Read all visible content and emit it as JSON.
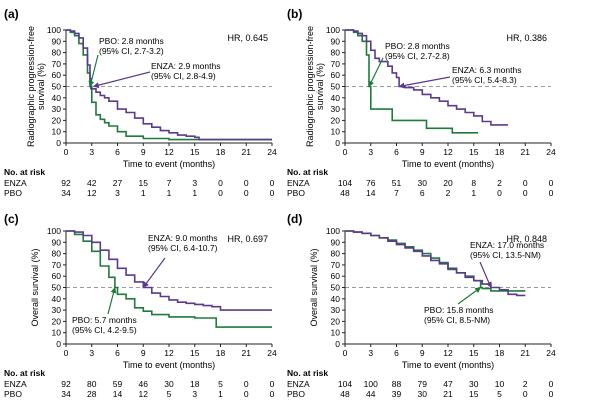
{
  "colors": {
    "enza": "#5b3a8e",
    "pbo": "#1e7b3c",
    "ref": "#9a9a9a",
    "axis": "#222222"
  },
  "risk_header": "No. at risk",
  "chart_data": [
    {
      "type": "line",
      "panel_label": "(a)",
      "hr_text": "HR, 0.645",
      "ylabel": "Radiographic progression-free survival (%)",
      "ylabel_lines": [
        "Radiographic progression-free",
        "survival (%)"
      ],
      "xlabel": "Time to event (months)",
      "xlim": [
        0,
        24
      ],
      "ylim": [
        0,
        100
      ],
      "x_ticks": [
        "0",
        "3",
        "6",
        "9",
        "12",
        "15",
        "18",
        "21",
        "24"
      ],
      "y_ticks": [
        "0",
        "10",
        "20",
        "30",
        "40",
        "50",
        "60",
        "70",
        "80",
        "90",
        "100"
      ],
      "reference_y": 50,
      "annotations": [
        {
          "series": "PBO",
          "lines": [
            "PBO: 2.8 months",
            "(95% CI, 2.7-3.2)"
          ]
        },
        {
          "series": "ENZA",
          "lines": [
            "ENZA: 2.9 months",
            "(95% CI, 2.8-4.9)"
          ]
        }
      ],
      "series": [
        {
          "name": "ENZA",
          "x": [
            0,
            0.5,
            1,
            1.5,
            2,
            2.5,
            2.8,
            2.9,
            3.5,
            4,
            4.5,
            5,
            6,
            7,
            8,
            9,
            10,
            11,
            12,
            13,
            14,
            15,
            15.5,
            16,
            24
          ],
          "y": [
            100,
            99,
            97,
            93,
            84,
            69,
            57,
            48,
            45,
            42,
            40,
            37,
            30,
            27,
            22,
            17,
            14,
            11,
            9,
            7,
            6,
            5,
            3,
            3,
            3
          ]
        },
        {
          "name": "PBO",
          "x": [
            0,
            0.5,
            1,
            1.5,
            2,
            2.5,
            2.8,
            3,
            3.5,
            4,
            4.5,
            5,
            6,
            7,
            9,
            12,
            15,
            16,
            24
          ],
          "y": [
            100,
            98,
            95,
            88,
            78,
            62,
            50,
            36,
            25,
            21,
            18,
            15,
            10,
            6,
            4,
            3,
            3,
            3,
            3
          ]
        }
      ],
      "risk_table": {
        "times": [
          "0",
          "3",
          "6",
          "9",
          "12",
          "15",
          "18",
          "21",
          "24"
        ],
        "rows": [
          {
            "label": "ENZA",
            "values": [
              "92",
              "42",
              "27",
              "15",
              "7",
              "3",
              "0",
              "0",
              "0"
            ]
          },
          {
            "label": "PBO",
            "values": [
              "34",
              "12",
              "3",
              "1",
              "1",
              "1",
              "0",
              "0",
              "0"
            ]
          }
        ]
      }
    },
    {
      "type": "line",
      "panel_label": "(b)",
      "hr_text": "HR, 0.386",
      "ylabel": "Radiographic progression-free survival (%)",
      "ylabel_lines": [
        "Radiographic progression-free",
        "survival (%)"
      ],
      "xlabel": "Time to event (months)",
      "xlim": [
        0,
        24
      ],
      "ylim": [
        0,
        100
      ],
      "x_ticks": [
        "0",
        "3",
        "6",
        "9",
        "12",
        "15",
        "18",
        "21",
        "24"
      ],
      "y_ticks": [
        "0",
        "10",
        "20",
        "30",
        "40",
        "50",
        "60",
        "70",
        "80",
        "90",
        "100"
      ],
      "reference_y": 50,
      "annotations": [
        {
          "series": "PBO",
          "lines": [
            "PBO: 2.8 months",
            "(95% CI, 2.7-2.8)"
          ]
        },
        {
          "series": "ENZA",
          "lines": [
            "ENZA: 6.3 months",
            "(95% CI, 5.4-8.3)"
          ]
        }
      ],
      "series": [
        {
          "name": "ENZA",
          "x": [
            0,
            1,
            1.5,
            2,
            2.5,
            3,
            3.5,
            4,
            5,
            5.5,
            6,
            6.3,
            7,
            8,
            9,
            10,
            11,
            12,
            13,
            14,
            15,
            16,
            17,
            19
          ],
          "y": [
            100,
            99,
            97,
            95,
            90,
            82,
            75,
            72,
            68,
            62,
            58,
            50,
            49,
            47,
            43,
            40,
            37,
            33,
            30,
            27,
            24,
            19,
            16,
            16
          ]
        },
        {
          "name": "PBO",
          "x": [
            0,
            1,
            1.5,
            2,
            2.5,
            2.8,
            3,
            5,
            5.5,
            9,
            9.5,
            12,
            12.5,
            15.5
          ],
          "y": [
            100,
            98,
            95,
            90,
            78,
            50,
            30,
            30,
            20,
            20,
            13,
            13,
            9,
            9
          ]
        }
      ],
      "risk_table": {
        "times": [
          "0",
          "3",
          "6",
          "9",
          "12",
          "15",
          "18",
          "21",
          "24"
        ],
        "rows": [
          {
            "label": "ENZA",
            "values": [
              "104",
              "76",
              "51",
              "30",
              "20",
              "8",
              "2",
              "0",
              "0"
            ]
          },
          {
            "label": "PBO",
            "values": [
              "48",
              "14",
              "7",
              "6",
              "2",
              "1",
              "0",
              "0",
              "0"
            ]
          }
        ]
      }
    },
    {
      "type": "line",
      "panel_label": "(c)",
      "hr_text": "HR, 0.697",
      "ylabel": "Overall survival (%)",
      "ylabel_lines": [
        "Overall survival (%)"
      ],
      "xlabel": "Time to event (months)",
      "xlim": [
        0,
        24
      ],
      "ylim": [
        0,
        100
      ],
      "x_ticks": [
        "0",
        "3",
        "6",
        "9",
        "12",
        "15",
        "18",
        "21",
        "24"
      ],
      "y_ticks": [
        "0",
        "10",
        "20",
        "30",
        "40",
        "50",
        "60",
        "70",
        "80",
        "90",
        "100"
      ],
      "reference_y": 50,
      "annotations": [
        {
          "series": "ENZA",
          "lines": [
            "ENZA: 9.0 months",
            "(95% CI, 6.4-10.7)"
          ]
        },
        {
          "series": "PBO",
          "lines": [
            "PBO: 5.7 months",
            "(95% CI, 4.2-9.5)"
          ]
        }
      ],
      "series": [
        {
          "name": "ENZA",
          "x": [
            0,
            1,
            2,
            3,
            4,
            5,
            6,
            7,
            8,
            9,
            10,
            11,
            12,
            13,
            14,
            15,
            16,
            17,
            18,
            20,
            24
          ],
          "y": [
            100,
            99,
            96,
            90,
            83,
            75,
            67,
            61,
            55,
            50,
            45,
            42,
            39,
            37,
            36,
            35,
            34,
            33,
            30,
            30,
            30
          ]
        },
        {
          "name": "PBO",
          "x": [
            0,
            1,
            2,
            3,
            4,
            5,
            5.7,
            6,
            7,
            8,
            9,
            10,
            12,
            15,
            17.5,
            24
          ],
          "y": [
            100,
            97,
            91,
            82,
            69,
            59,
            50,
            44,
            40,
            32,
            29,
            26,
            24,
            23,
            15,
            15
          ]
        }
      ],
      "risk_table": {
        "times": [
          "0",
          "3",
          "6",
          "9",
          "12",
          "15",
          "18",
          "21",
          "24"
        ],
        "rows": [
          {
            "label": "ENZA",
            "values": [
              "92",
              "80",
              "59",
              "46",
              "30",
              "18",
              "5",
              "0",
              "0"
            ]
          },
          {
            "label": "PBO",
            "values": [
              "34",
              "28",
              "14",
              "12",
              "5",
              "3",
              "1",
              "0",
              "0"
            ]
          }
        ]
      }
    },
    {
      "type": "line",
      "panel_label": "(d)",
      "hr_text": "HR, 0.848",
      "ylabel": "Overall survival (%)",
      "ylabel_lines": [
        "Overall survival (%)"
      ],
      "xlabel": "Time to event (months)",
      "xlim": [
        0,
        24
      ],
      "ylim": [
        0,
        100
      ],
      "x_ticks": [
        "0",
        "3",
        "6",
        "9",
        "12",
        "15",
        "18",
        "21",
        "24"
      ],
      "y_ticks": [
        "0",
        "10",
        "20",
        "30",
        "40",
        "50",
        "60",
        "70",
        "80",
        "90",
        "100"
      ],
      "reference_y": 50,
      "annotations": [
        {
          "series": "ENZA",
          "lines": [
            "ENZA: 17.0 months",
            "(95% CI, 13.5-NM)"
          ]
        },
        {
          "series": "PBO",
          "lines": [
            "PBO: 15.8 months",
            "(95% CI, 8.5-NM)"
          ]
        }
      ],
      "series": [
        {
          "name": "ENZA",
          "x": [
            0,
            1,
            2,
            3,
            4,
            5,
            6,
            7,
            8,
            9,
            10,
            11,
            12,
            13,
            14,
            15,
            16,
            17,
            18,
            19,
            20,
            21
          ],
          "y": [
            100,
            99,
            98,
            96,
            94,
            91,
            88,
            85,
            82,
            78,
            74,
            71,
            67,
            63,
            59,
            56,
            53,
            50,
            48,
            44,
            43,
            43
          ]
        },
        {
          "name": "PBO",
          "x": [
            0,
            1,
            2,
            3,
            4,
            5,
            6,
            7,
            8,
            9,
            10,
            11,
            12,
            13,
            14,
            15,
            15.8,
            16,
            17,
            18,
            19,
            21
          ],
          "y": [
            100,
            99,
            98,
            96,
            94,
            92,
            89,
            86,
            83,
            80,
            76,
            72,
            66,
            63,
            60,
            56,
            50,
            49,
            47,
            47,
            47,
            47
          ]
        }
      ],
      "risk_table": {
        "times": [
          "0",
          "3",
          "6",
          "9",
          "12",
          "15",
          "18",
          "21",
          "24"
        ],
        "rows": [
          {
            "label": "ENZA",
            "values": [
              "104",
              "100",
              "88",
              "79",
              "47",
              "30",
              "10",
              "2",
              "0"
            ]
          },
          {
            "label": "PBO",
            "values": [
              "48",
              "44",
              "39",
              "30",
              "21",
              "15",
              "5",
              "0",
              "0"
            ]
          }
        ]
      }
    }
  ]
}
